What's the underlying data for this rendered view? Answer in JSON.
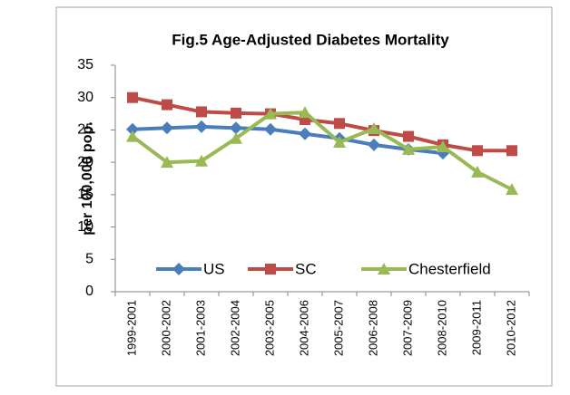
{
  "chart_data": {
    "type": "line",
    "title": "Fig.5  Age-Adjusted Diabetes Mortality",
    "y_label": "per 100,000 pop.",
    "categories": [
      "1999-2001",
      "2000-2002",
      "2001-2003",
      "2002-2004",
      "2003-2005",
      "2004-2006",
      "2005-2007",
      "2006-2008",
      "2007-2009",
      "2008-2010",
      "2009-2011",
      "2010-2012"
    ],
    "series": [
      {
        "name": "US",
        "color": "#4a7ebb",
        "marker": "diamond",
        "values": [
          25.1,
          25.3,
          25.5,
          25.3,
          25.1,
          24.4,
          23.7,
          22.7,
          22.0,
          21.4,
          null,
          null
        ]
      },
      {
        "name": "SC",
        "color": "#be4b48",
        "marker": "square",
        "values": [
          30.0,
          28.9,
          27.8,
          27.6,
          27.5,
          26.6,
          26.0,
          24.9,
          24.0,
          22.7,
          21.8,
          21.8
        ]
      },
      {
        "name": "Chesterfield",
        "color": "#98b954",
        "marker": "triangle",
        "values": [
          24.0,
          20.0,
          20.2,
          23.7,
          27.5,
          27.7,
          23.1,
          25.2,
          22.0,
          22.4,
          18.5,
          15.8
        ]
      }
    ],
    "ylim": [
      0,
      35
    ],
    "yticks": [
      0,
      5,
      10,
      15,
      20,
      25,
      30,
      35
    ],
    "grid": false,
    "legend": "bottom"
  }
}
